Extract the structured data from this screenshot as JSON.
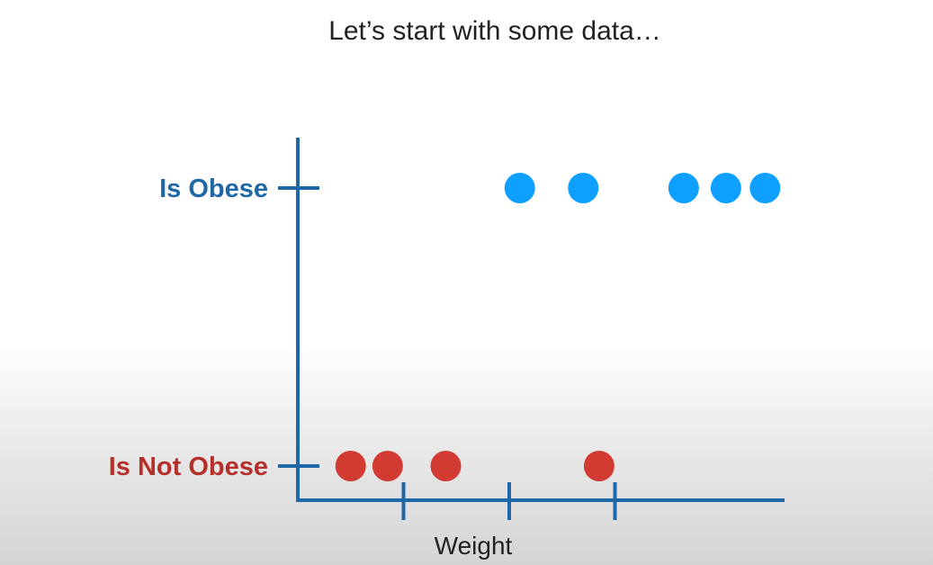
{
  "title": "Let’s start with some data…",
  "chart_data": {
    "type": "scatter",
    "title": "Let’s start with some data…",
    "xlabel": "Weight",
    "ylabel": "",
    "y_categories": [
      "Is Not Obese",
      "Is Obese"
    ],
    "x_ticks": [
      1,
      2,
      3
    ],
    "xlim": [
      0,
      4.7
    ],
    "grid": false,
    "legend": "none",
    "series": [
      {
        "class": "Is Obese",
        "color": "#0fa0ff",
        "label_color": "#1f68a8",
        "points": [
          {
            "x": 2.1,
            "y": "Is Obese"
          },
          {
            "x": 2.7,
            "y": "Is Obese"
          },
          {
            "x": 3.65,
            "y": "Is Obese"
          },
          {
            "x": 4.05,
            "y": "Is Obese"
          },
          {
            "x": 4.42,
            "y": "Is Obese"
          }
        ]
      },
      {
        "class": "Is Not Obese",
        "color": "#d13b32",
        "label_color": "#b5302a",
        "points": [
          {
            "x": 0.5,
            "y": "Is Not Obese"
          },
          {
            "x": 0.85,
            "y": "Is Not Obese"
          },
          {
            "x": 1.4,
            "y": "Is Not Obese"
          },
          {
            "x": 2.85,
            "y": "Is Not Obese"
          }
        ]
      }
    ],
    "axis_color": "#1f68a8"
  }
}
